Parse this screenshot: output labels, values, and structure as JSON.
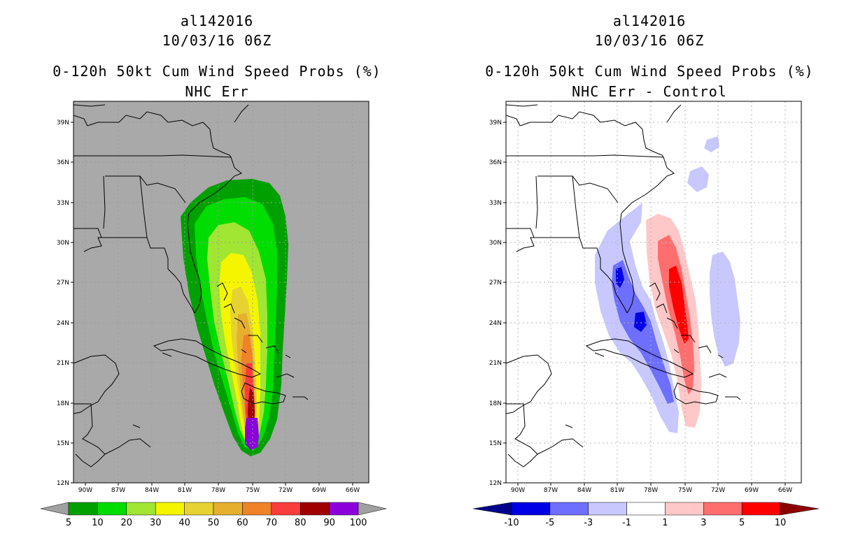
{
  "left": {
    "storm_id": "al142016",
    "datetime": "10/03/16 06Z",
    "product": "0-120h 50kt Cum Wind Speed Probs (%)",
    "subtitle": "NHC Err",
    "colorbar": {
      "ticks": [
        "5",
        "10",
        "20",
        "30",
        "40",
        "50",
        "60",
        "70",
        "80",
        "90",
        "100"
      ],
      "colors": [
        "#00a000",
        "#00dd00",
        "#a0e632",
        "#f5f500",
        "#e6d232",
        "#e6af2d",
        "#f08228",
        "#fa3c3c",
        "#a00000",
        "#8c00dc"
      ],
      "under_color": "#a0a0a0",
      "over_color": "#a0a0a0"
    }
  },
  "right": {
    "storm_id": "al142016",
    "datetime": "10/03/16 06Z",
    "product": "0-120h 50kt Cum Wind Speed Probs (%)",
    "subtitle": "NHC Err - Control",
    "colorbar": {
      "ticks": [
        "-10",
        "-5",
        "-3",
        "-1",
        "1",
        "3",
        "5",
        "10"
      ],
      "colors": [
        "#0000e6",
        "#6e6eff",
        "#c8c8ff",
        "#ffffff",
        "#ffc8c8",
        "#ff6e6e",
        "#ff0000"
      ],
      "under_color": "#00008c",
      "over_color": "#8c0000"
    }
  },
  "axes": {
    "lat_labels": [
      "39N",
      "36N",
      "33N",
      "30N",
      "27N",
      "24N",
      "21N",
      "18N",
      "15N",
      "12N"
    ],
    "lon_labels": [
      "90W",
      "87W",
      "84W",
      "81W",
      "78W",
      "75W",
      "72W",
      "69W",
      "66W"
    ]
  },
  "colors": {
    "left_background": "#a9a9a9",
    "right_background": "#ffffff",
    "coast": "#000000",
    "grid": "#b4b4b4"
  }
}
